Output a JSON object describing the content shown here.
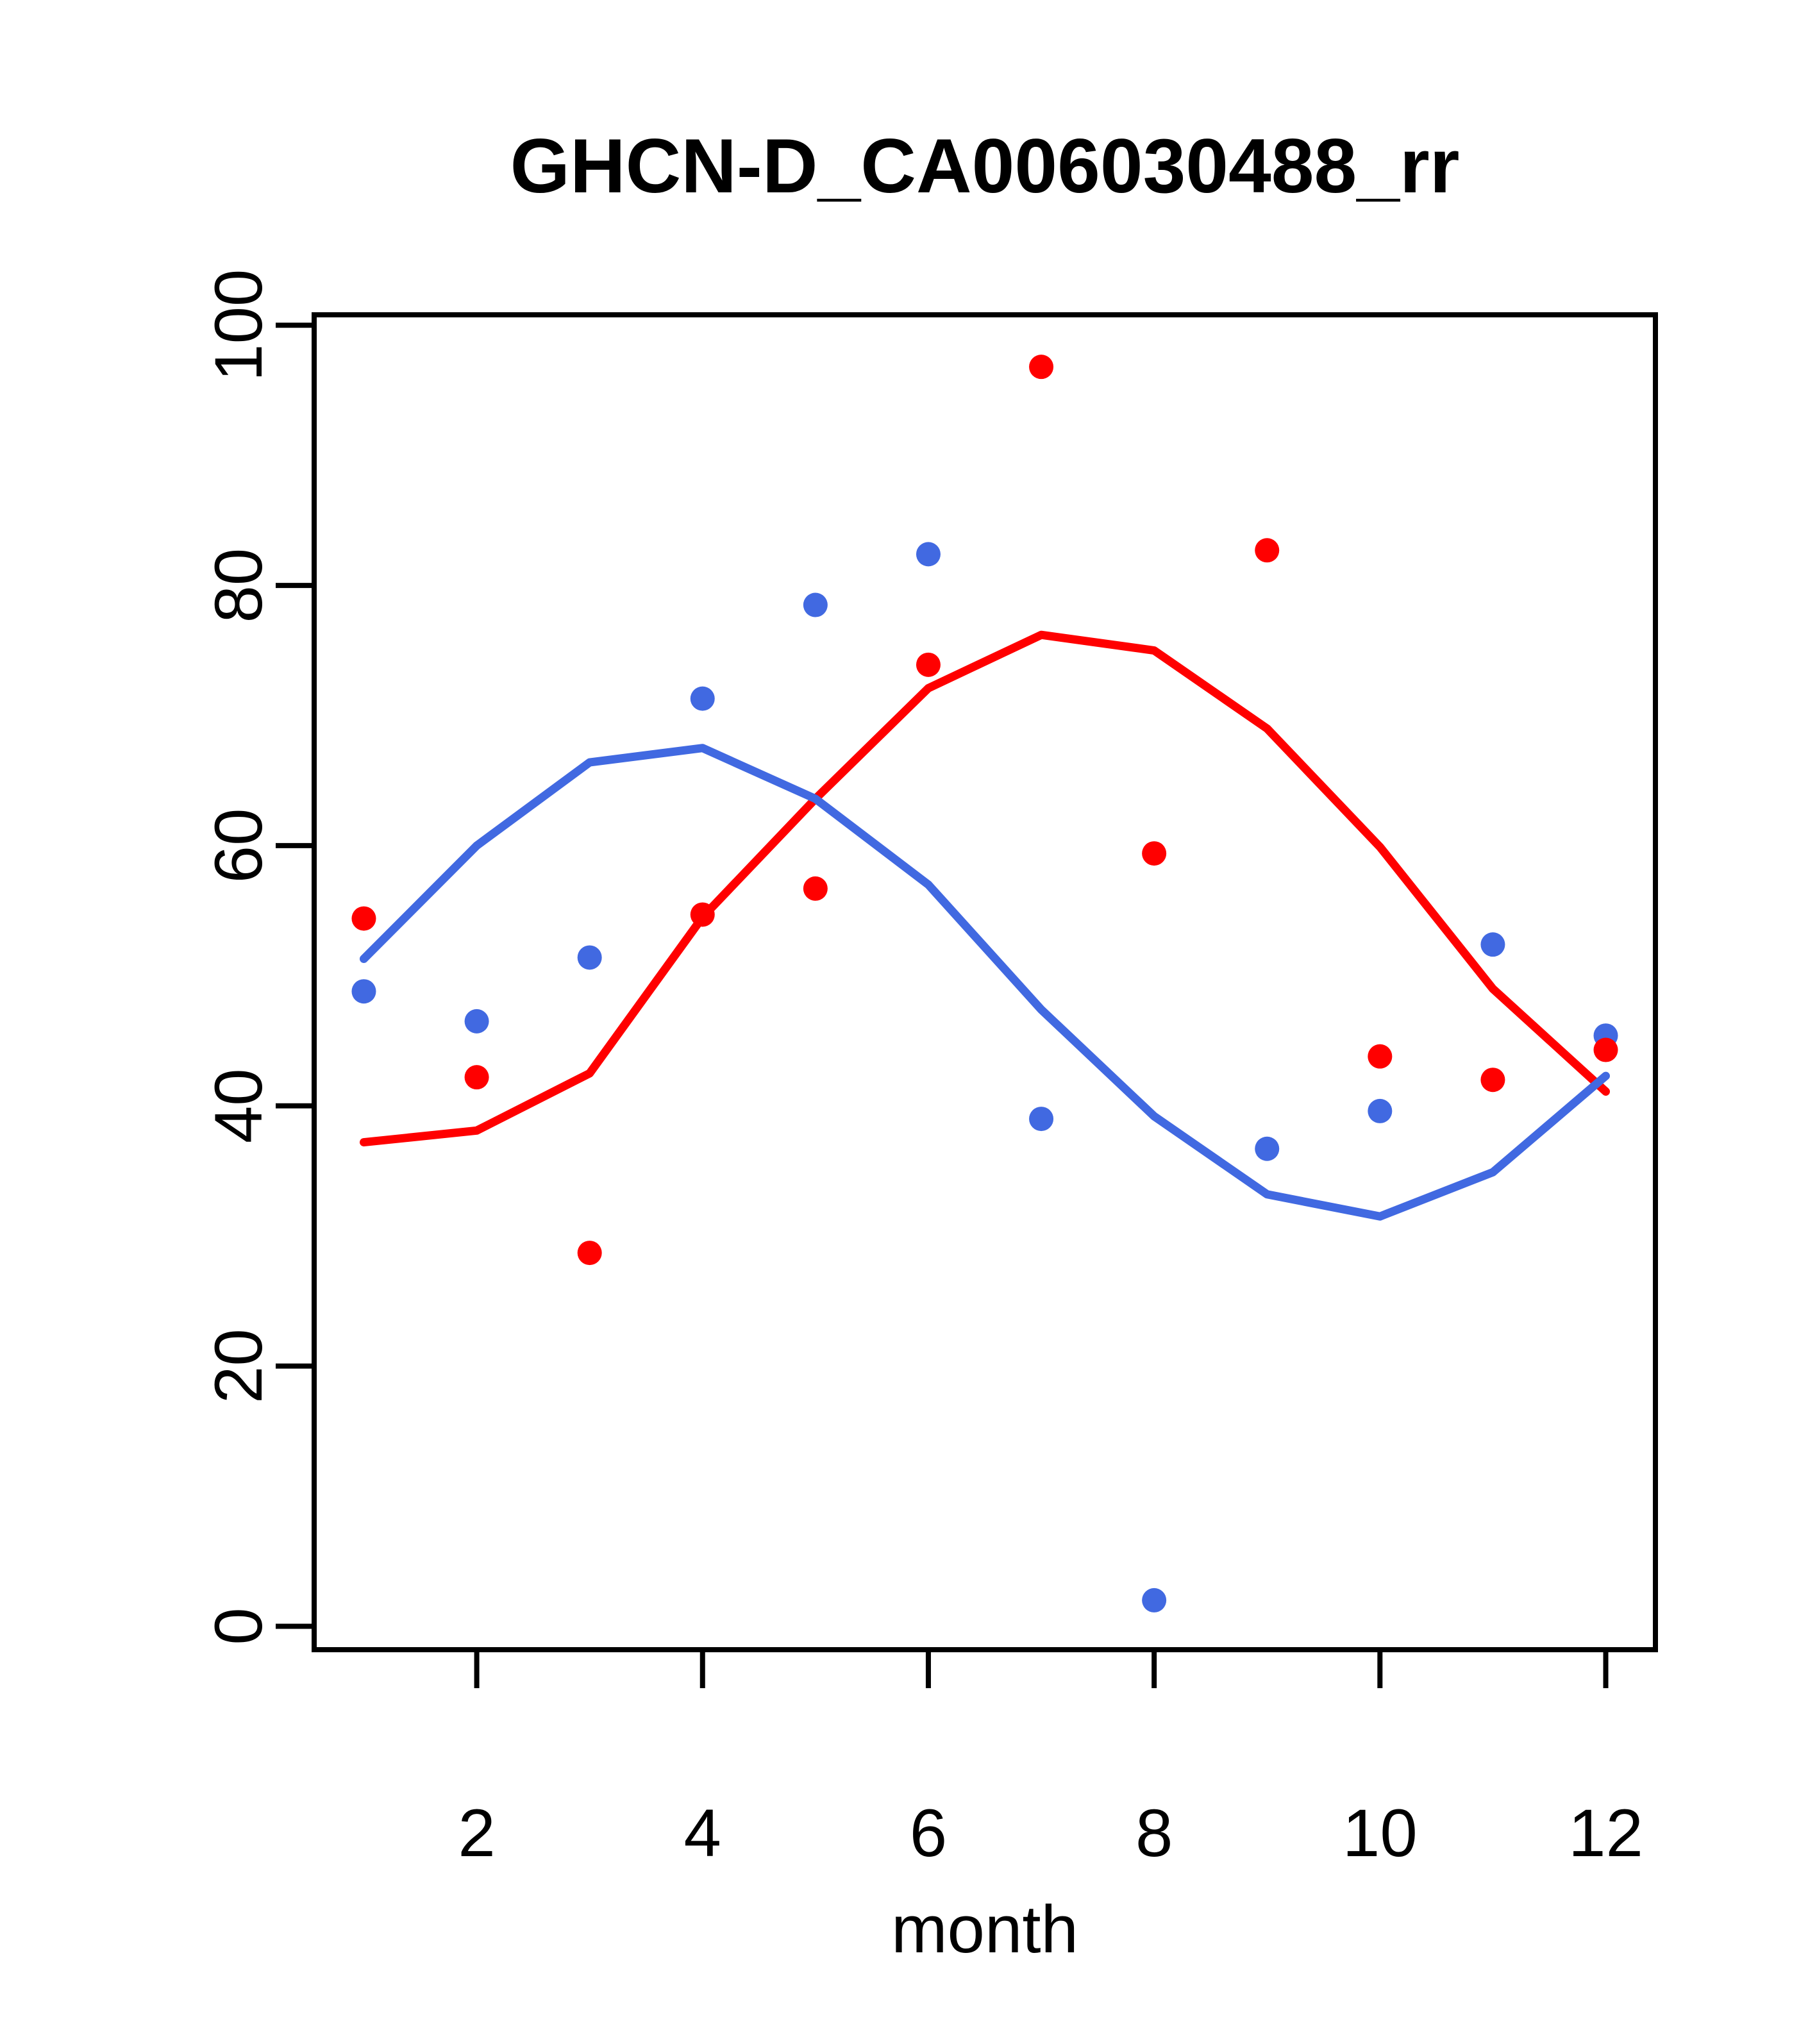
{
  "figure": {
    "title": "GHCN-D_CA006030488_rr",
    "xlabel": "month"
  },
  "chart_data": {
    "type": "scatter",
    "title": "GHCN-D_CA006030488_rr",
    "xlabel": "month",
    "ylabel": "",
    "grid": false,
    "legend": "none",
    "x": [
      1,
      2,
      3,
      4,
      5,
      6,
      7,
      8,
      9,
      10,
      11,
      12
    ],
    "x_ticks": [
      2,
      4,
      6,
      8,
      10,
      12
    ],
    "y_ticks": [
      0,
      20,
      40,
      60,
      80,
      100
    ],
    "xlim": [
      0.56,
      12.44
    ],
    "ylim": [
      -1.8,
      100.8
    ],
    "colors": {
      "red": "#FF0000",
      "blue": "#4169E1",
      "axis": "#000000"
    },
    "series": [
      {
        "name": "blue_points",
        "type": "scatter",
        "color_key": "blue",
        "values": [
          48.8,
          46.5,
          51.4,
          71.3,
          78.5,
          82.4,
          39.0,
          2.0,
          36.7,
          39.6,
          52.4,
          45.4
        ]
      },
      {
        "name": "red_points",
        "type": "scatter",
        "color_key": "red",
        "values": [
          54.4,
          42.2,
          28.7,
          54.7,
          56.7,
          73.9,
          96.8,
          59.4,
          82.7,
          43.8,
          42.0,
          44.3
        ]
      },
      {
        "name": "red_loess",
        "type": "line",
        "color_key": "red",
        "values": [
          37.2,
          38.1,
          42.5,
          54.5,
          63.6,
          72.1,
          76.2,
          75.0,
          69.0,
          59.9,
          49.0,
          41.1
        ]
      },
      {
        "name": "blue_loess",
        "type": "line",
        "color_key": "blue",
        "values": [
          51.3,
          60.0,
          66.4,
          67.5,
          63.6,
          57.0,
          47.4,
          39.2,
          33.2,
          31.5,
          34.9,
          42.3
        ]
      }
    ]
  }
}
